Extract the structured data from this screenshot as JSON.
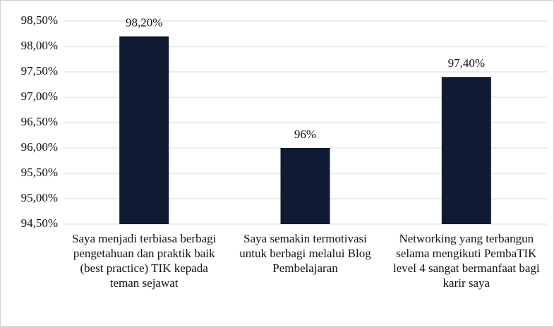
{
  "chart_data": {
    "type": "bar",
    "categories": [
      "Saya menjadi terbiasa berbagi pengetahuan dan praktik baik (best practice) TIK kepada teman sejawat",
      "Saya semakin termotivasi untuk berbagi melalui Blog Pembelajaran",
      "Networking yang terbangun selama mengikuti PembaTIK level 4 sangat bermanfaat bagi karir saya"
    ],
    "values": [
      98.2,
      96,
      97.4
    ],
    "value_labels": [
      "98,20%",
      "96%",
      "97,40%"
    ],
    "color": "#0f1a33",
    "ylim": [
      94.5,
      98.5
    ],
    "yticks": [
      {
        "value": 94.5,
        "label": "94,50%"
      },
      {
        "value": 95,
        "label": "95,00%"
      },
      {
        "value": 95.5,
        "label": "95,50%"
      },
      {
        "value": 96,
        "label": "96,00%"
      },
      {
        "value": 96.5,
        "label": "96,50%"
      },
      {
        "value": 97,
        "label": "97,00%"
      },
      {
        "value": 97.5,
        "label": "97,50%"
      },
      {
        "value": 98,
        "label": "98,00%"
      },
      {
        "value": 98.5,
        "label": "98,50%"
      }
    ],
    "grid": true
  }
}
